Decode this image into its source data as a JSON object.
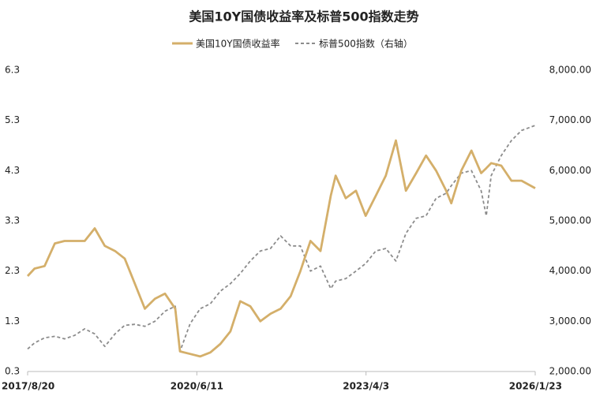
{
  "chart_data": {
    "type": "line",
    "title": "美国10Y国债收益率及标普500指数走势",
    "x": [
      "2017/8/20",
      "2017/10/1",
      "2017/12/1",
      "2018/2/1",
      "2018/4/1",
      "2018/6/1",
      "2018/8/1",
      "2018/10/1",
      "2018/12/1",
      "2019/2/1",
      "2019/4/1",
      "2019/6/1",
      "2019/8/1",
      "2019/10/1",
      "2019/12/1",
      "2020/2/1",
      "2020/3/1",
      "2020/5/1",
      "2020/7/1",
      "2020/9/1",
      "2020/11/1",
      "2021/1/1",
      "2021/3/1",
      "2021/5/1",
      "2021/7/1",
      "2021/9/1",
      "2021/11/1",
      "2022/1/1",
      "2022/3/1",
      "2022/5/1",
      "2022/7/1",
      "2022/9/1",
      "2022/10/1",
      "2022/12/1",
      "2023/2/1",
      "2023/4/1",
      "2023/6/1",
      "2023/8/1",
      "2023/10/1",
      "2023/12/1",
      "2024/2/1",
      "2024/4/1",
      "2024/6/1",
      "2024/8/1",
      "2024/9/1",
      "2024/11/1",
      "2025/1/1",
      "2025/3/1",
      "2025/4/1",
      "2025/5/1",
      "2025/7/1",
      "2025/9/1",
      "2025/11/1",
      "2026/1/23"
    ],
    "series": [
      {
        "name": "美国10Y国债收益率",
        "color": "#d4af6a",
        "dash": false,
        "values": [
          2.2,
          2.35,
          2.4,
          2.85,
          2.9,
          2.9,
          2.9,
          3.15,
          2.8,
          2.7,
          2.55,
          2.05,
          1.55,
          1.75,
          1.85,
          1.55,
          0.7,
          0.65,
          0.6,
          0.68,
          0.85,
          1.1,
          1.7,
          1.6,
          1.3,
          1.45,
          1.55,
          1.8,
          2.3,
          2.9,
          2.7,
          3.8,
          4.2,
          3.75,
          3.9,
          3.4,
          3.8,
          4.2,
          4.9,
          3.9,
          4.25,
          4.6,
          4.3,
          3.9,
          3.65,
          4.3,
          4.7,
          4.25,
          4.35,
          4.45,
          4.4,
          4.1,
          4.1,
          3.95
        ]
      },
      {
        "name": "标普500指数（右轴）",
        "color": "#8c8c8c",
        "dash": true,
        "axis": "y2",
        "values": [
          2450,
          2570,
          2670,
          2700,
          2650,
          2720,
          2850,
          2750,
          2500,
          2750,
          2920,
          2940,
          2900,
          3000,
          3200,
          3300,
          2400,
          2950,
          3250,
          3350,
          3600,
          3750,
          3950,
          4200,
          4400,
          4450,
          4700,
          4500,
          4500,
          4000,
          4100,
          3650,
          3800,
          3850,
          4000,
          4150,
          4400,
          4450,
          4200,
          4750,
          5050,
          5100,
          5450,
          5550,
          5700,
          5950,
          6000,
          5600,
          5100,
          5900,
          6300,
          6600,
          6800,
          6900
        ]
      }
    ],
    "xlim": [
      "2017/8/20",
      "2026/1/23"
    ],
    "xticks": [
      "2017/8/20",
      "2020/6/11",
      "2023/4/3",
      "2026/1/23"
    ],
    "ylim": [
      0.3,
      6.3
    ],
    "yticks": [
      0.3,
      1.3,
      2.3,
      3.3,
      4.3,
      5.3,
      6.3
    ],
    "y2lim": [
      2000,
      8000
    ],
    "y2ticks": [
      {
        "value": 2000,
        "label": "2,000.00"
      },
      {
        "value": 3000,
        "label": "3,000.00"
      },
      {
        "value": 4000,
        "label": "4,000.00"
      },
      {
        "value": 5000,
        "label": "5,000.00"
      },
      {
        "value": 6000,
        "label": "6,000.00"
      },
      {
        "value": 7000,
        "label": "7,000.00"
      },
      {
        "value": 8000,
        "label": "8,000.00"
      }
    ],
    "legend": "top"
  }
}
